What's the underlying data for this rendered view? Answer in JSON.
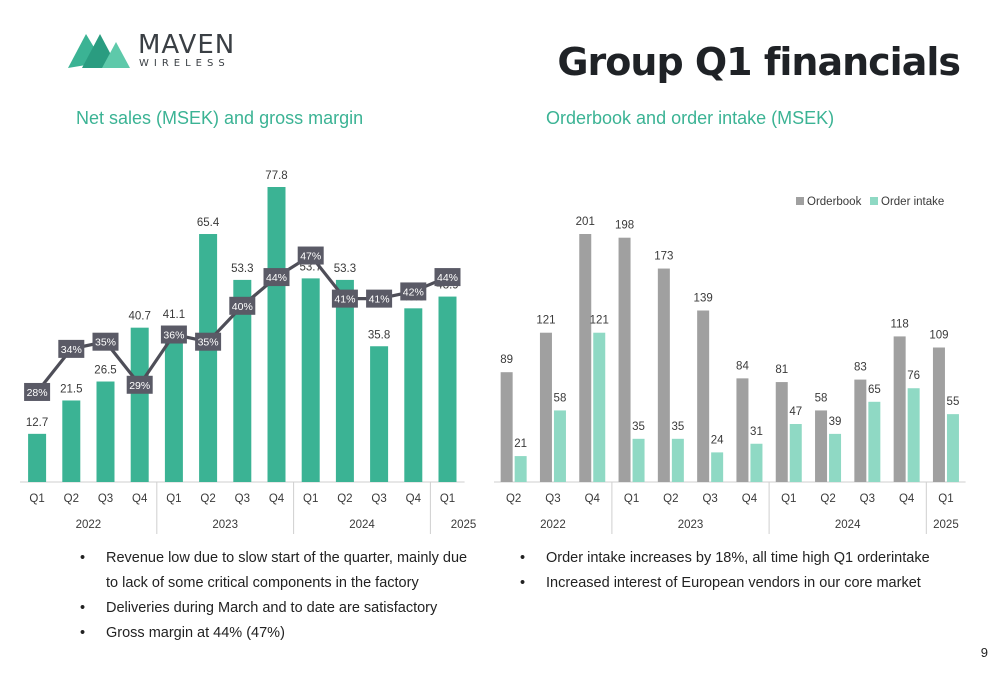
{
  "logo": {
    "name": "MAVEN",
    "sub": "WIRELESS"
  },
  "page_title": "Group Q1 financials",
  "page_number": "9",
  "colors": {
    "teal": "#3bb394",
    "light_teal": "#8fd9c4",
    "gray": "#a0a0a0",
    "label_box": "#5a5a66"
  },
  "left_bullets": [
    "Revenue low due to slow start of the quarter, mainly due to lack of some critical components in the factory",
    "Deliveries during March and to date are satisfactory",
    "Gross margin at 44% (47%)"
  ],
  "right_bullets": [
    "Order intake increases by 18%, all time high Q1 orderintake",
    "Increased interest of European vendors in our core market"
  ],
  "chart_data": [
    {
      "type": "bar",
      "title": "Net sales (MSEK) and gross margin",
      "categories": [
        "Q1",
        "Q2",
        "Q3",
        "Q4",
        "Q1",
        "Q2",
        "Q3",
        "Q4",
        "Q1",
        "Q2",
        "Q3",
        "Q4",
        "Q1"
      ],
      "groups": [
        {
          "label": "2022",
          "count": 4
        },
        {
          "label": "2023",
          "count": 4
        },
        {
          "label": "2024",
          "count": 4
        },
        {
          "label": "2025",
          "count": 1
        }
      ],
      "series": [
        {
          "type": "bar",
          "values": [
            12.7,
            21.5,
            26.5,
            40.7,
            41.1,
            65.4,
            53.3,
            77.8,
            53.7,
            53.3,
            35.8,
            45.8,
            48.9
          ]
        },
        {
          "type": "line",
          "values": [
            "28%",
            "34%",
            "35%",
            "29%",
            "36%",
            "35%",
            "40%",
            "44%",
            "47%",
            "41%",
            "41%",
            "42%",
            "44%"
          ]
        }
      ]
    },
    {
      "type": "bar",
      "title": "Orderbook and order intake (MSEK)",
      "categories": [
        "Q2",
        "Q3",
        "Q4",
        "Q1",
        "Q2",
        "Q3",
        "Q4",
        "Q1",
        "Q2",
        "Q3",
        "Q4",
        "Q1"
      ],
      "groups": [
        {
          "label": "2022",
          "count": 3
        },
        {
          "label": "2023",
          "count": 4
        },
        {
          "label": "2024",
          "count": 4
        },
        {
          "label": "2025",
          "count": 1
        }
      ],
      "legend_position": "top-right",
      "series": [
        {
          "name": "Orderbook",
          "values": [
            89,
            121,
            201,
            198,
            173,
            139,
            84,
            81,
            58,
            83,
            118,
            109
          ]
        },
        {
          "name": "Order intake",
          "values": [
            21,
            58,
            121,
            35,
            35,
            24,
            31,
            47,
            39,
            65,
            76,
            55
          ]
        }
      ]
    }
  ]
}
